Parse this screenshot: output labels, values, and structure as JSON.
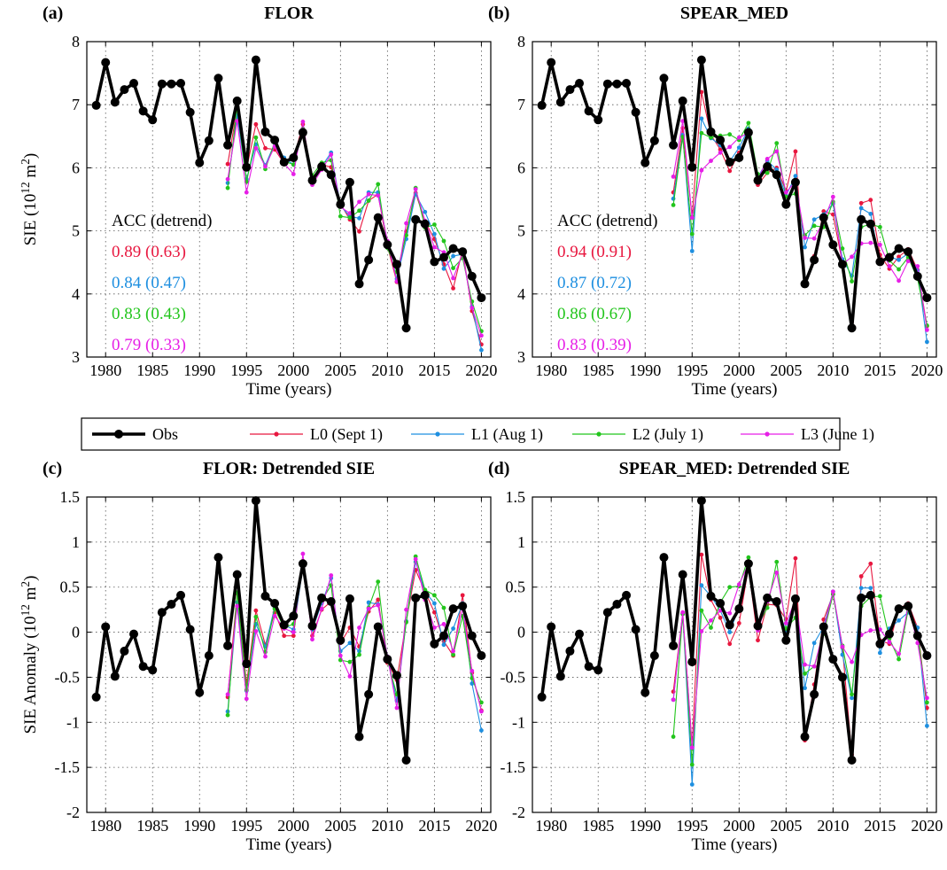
{
  "figure": {
    "legend": [
      {
        "label": "Obs",
        "color": "#000000"
      },
      {
        "label": "L0 (Sept 1)",
        "color": "#e8173f"
      },
      {
        "label": "L1 (Aug 1)",
        "color": "#1e8fe0"
      },
      {
        "label": "L2 (July 1)",
        "color": "#22c51c"
      },
      {
        "label": "L3 (June 1)",
        "color": "#e61ee6"
      }
    ]
  },
  "chart_data": [
    {
      "type": "line",
      "panel": "(a)",
      "title": "FLOR",
      "xlabel": "Time (years)",
      "ylabel": "SIE (10^12 m^2)",
      "xlim": [
        1978,
        2021
      ],
      "ylim": [
        3,
        8
      ],
      "xticks": [
        1980,
        1985,
        1990,
        1995,
        2000,
        2005,
        2010,
        2015,
        2020
      ],
      "yticks": [
        3,
        4,
        5,
        6,
        7,
        8
      ],
      "grid": true,
      "acc_header": "ACC (detrend)",
      "acc": [
        "0.89 (0.63)",
        "0.84 (0.47)",
        "0.83 (0.43)",
        "0.79 (0.33)"
      ],
      "obs": {
        "name": "Obs",
        "x_start": 1979,
        "values": [
          6.99,
          7.67,
          7.04,
          7.24,
          7.34,
          6.9,
          6.76,
          7.33,
          7.33,
          7.34,
          6.88,
          6.08,
          6.43,
          7.42,
          6.36,
          7.06,
          6.01,
          7.71,
          6.57,
          6.44,
          6.09,
          6.16,
          6.56,
          5.8,
          6.02,
          5.89,
          5.42,
          5.77,
          4.16,
          4.54,
          5.21,
          4.78,
          4.47,
          3.46,
          5.18,
          5.11,
          4.51,
          4.58,
          4.72,
          4.67,
          4.28,
          3.94
        ]
      },
      "series": [
        {
          "name": "L0 (Sept 1)",
          "x_start": 1993,
          "values": [
            6.06,
            6.94,
            5.98,
            6.69,
            6.31,
            6.29,
            6.07,
            6.14,
            6.69,
            5.82,
            6.05,
            6.01,
            5.43,
            5.18,
            4.99,
            5.48,
            5.58,
            4.76,
            4.19,
            4.99,
            5.6,
            5.15,
            4.87,
            4.47,
            4.09,
            4.7,
            3.73,
            3.2
          ]
        },
        {
          "name": "L1 (Aug 1)",
          "x_start": 1993,
          "values": [
            5.76,
            6.83,
            5.82,
            6.37,
            6.04,
            6.39,
            6.16,
            6.05,
            6.59,
            5.83,
            6.02,
            6.24,
            5.4,
            5.23,
            5.2,
            5.61,
            5.61,
            4.81,
            4.24,
            4.87,
            5.58,
            5.3,
            4.95,
            4.4,
            4.6,
            4.63,
            3.8,
            3.11
          ]
        },
        {
          "name": "L2 (July 1)",
          "x_start": 1993,
          "values": [
            5.68,
            6.96,
            5.78,
            6.48,
            5.98,
            6.4,
            6.11,
            6.05,
            6.62,
            5.88,
            6.08,
            6.12,
            5.23,
            5.21,
            5.32,
            5.48,
            5.74,
            4.73,
            4.35,
            4.93,
            5.68,
            5.05,
            5.1,
            4.84,
            4.41,
            4.57,
            3.88,
            3.41
          ]
        },
        {
          "name": "L3 (June 1)",
          "x_start": 1993,
          "values": [
            5.82,
            6.74,
            5.61,
            6.31,
            6.02,
            6.34,
            6.07,
            5.9,
            6.73,
            5.73,
            5.97,
            6.21,
            5.38,
            5.28,
            5.46,
            5.58,
            5.56,
            4.84,
            4.2,
            5.12,
            5.66,
            5.16,
            4.74,
            4.66,
            4.25,
            4.64,
            3.78,
            3.34
          ]
        }
      ]
    },
    {
      "type": "line",
      "panel": "(b)",
      "title": "SPEAR_MED",
      "xlabel": "Time (years)",
      "ylabel": "",
      "xlim": [
        1978,
        2021
      ],
      "ylim": [
        3,
        8
      ],
      "xticks": [
        1980,
        1985,
        1990,
        1995,
        2000,
        2005,
        2010,
        2015,
        2020
      ],
      "yticks": [
        3,
        4,
        5,
        6,
        7,
        8
      ],
      "grid": true,
      "acc_header": "ACC (detrend)",
      "acc": [
        "0.94 (0.91)",
        "0.87 (0.72)",
        "0.86 (0.67)",
        "0.83 (0.39)"
      ],
      "obs": {
        "name": "Obs",
        "x_start": 1979,
        "values": [
          6.99,
          7.67,
          7.04,
          7.24,
          7.34,
          6.9,
          6.76,
          7.33,
          7.33,
          7.34,
          6.88,
          6.08,
          6.43,
          7.42,
          6.36,
          7.06,
          6.01,
          7.71,
          6.57,
          6.44,
          6.09,
          6.16,
          6.56,
          5.8,
          6.02,
          5.89,
          5.42,
          5.77,
          4.16,
          4.54,
          5.21,
          4.78,
          4.47,
          3.46,
          5.18,
          5.11,
          4.51,
          4.58,
          4.72,
          4.67,
          4.28,
          3.94
        ]
      },
      "series": [
        {
          "name": "L0 (Sept 1)",
          "x_start": 1993,
          "values": [
            5.61,
            6.63,
            5.22,
            7.2,
            6.52,
            6.29,
            5.95,
            6.24,
            6.55,
            5.73,
            5.92,
            6.0,
            5.63,
            6.26,
            4.16,
            4.6,
            5.31,
            5.26,
            4.49,
            3.56,
            5.44,
            5.49,
            4.62,
            4.4,
            4.59,
            4.71,
            4.38,
            3.49
          ]
        },
        {
          "name": "L1 (Aug 1)",
          "x_start": 1993,
          "values": [
            5.51,
            6.52,
            4.68,
            6.78,
            6.47,
            6.36,
            6.1,
            6.32,
            6.62,
            5.85,
            6.11,
            5.97,
            5.56,
            5.87,
            4.74,
            5.18,
            5.26,
            5.43,
            4.55,
            4.29,
            5.36,
            5.27,
            4.48,
            4.59,
            4.54,
            4.64,
            4.37,
            3.24
          ]
        },
        {
          "name": "L2 (July 1)",
          "x_start": 1993,
          "values": [
            5.41,
            6.49,
            4.95,
            6.55,
            6.48,
            6.51,
            6.53,
            6.44,
            6.71,
            5.9,
            5.92,
            6.39,
            5.54,
            5.59,
            4.93,
            5.08,
            5.06,
            5.46,
            4.72,
            4.2,
            5.06,
            5.11,
            5.06,
            4.53,
            4.39,
            4.58,
            4.24,
            3.5
          ]
        },
        {
          "name": "L3 (June 1)",
          "x_start": 1993,
          "values": [
            5.86,
            6.74,
            5.21,
            5.96,
            6.11,
            6.24,
            6.33,
            6.48,
            6.55,
            5.81,
            6.14,
            6.26,
            5.61,
            5.78,
            4.89,
            4.88,
            5.16,
            5.54,
            4.47,
            4.59,
            4.8,
            4.81,
            4.78,
            4.44,
            4.21,
            4.52,
            4.44,
            3.43
          ]
        }
      ]
    },
    {
      "type": "line",
      "panel": "(c)",
      "title": "FLOR: Detrended SIE",
      "xlabel": "Time (years)",
      "ylabel": "SIE Anomaly (10^12 m^2)",
      "xlim": [
        1978,
        2021
      ],
      "ylim": [
        -2,
        1.5
      ],
      "xticks": [
        1980,
        1985,
        1990,
        1995,
        2000,
        2005,
        2010,
        2015,
        2020
      ],
      "yticks": [
        -2,
        -1.5,
        -1,
        -0.5,
        0,
        0.5,
        1,
        1.5
      ],
      "grid": true,
      "obs": {
        "name": "Obs",
        "x_start": 1979,
        "values": [
          -0.72,
          0.06,
          -0.49,
          -0.21,
          -0.02,
          -0.38,
          -0.42,
          0.22,
          0.31,
          0.41,
          0.03,
          -0.67,
          -0.26,
          0.83,
          -0.15,
          0.64,
          -0.35,
          1.46,
          0.4,
          0.32,
          0.08,
          0.18,
          0.76,
          0.07,
          0.38,
          0.34,
          -0.09,
          0.37,
          -1.16,
          -0.69,
          0.06,
          -0.3,
          -0.48,
          -1.42,
          0.38,
          0.41,
          -0.13,
          -0.04,
          0.26,
          0.29,
          -0.04,
          -0.26
        ]
      },
      "series": [
        {
          "name": "L0 (Sept 1)",
          "x_start": 1993,
          "values": [
            -0.72,
            0.43,
            -0.58,
            0.24,
            -0.14,
            0.22,
            -0.04,
            -0.04,
            0.79,
            -0.04,
            0.25,
            0.34,
            -0.12,
            0.05,
            -0.16,
            0.23,
            0.36,
            -0.34,
            -0.53,
            0.12,
            0.69,
            0.45,
            0.22,
            -0.1,
            -0.26,
            0.41,
            -0.45,
            -0.87
          ]
        },
        {
          "name": "L1 (Aug 1)",
          "x_start": 1993,
          "values": [
            -0.88,
            0.33,
            -0.65,
            0.09,
            -0.16,
            0.28,
            0.08,
            0.03,
            0.72,
            0.03,
            0.32,
            0.6,
            -0.21,
            -0.12,
            -0.21,
            0.33,
            0.31,
            -0.27,
            -0.76,
            0.12,
            0.78,
            0.45,
            0.32,
            -0.14,
            0.04,
            0.32,
            -0.57,
            -1.09
          ]
        },
        {
          "name": "L2 (July 1)",
          "x_start": 1993,
          "values": [
            -0.92,
            0.44,
            -0.64,
            0.17,
            -0.22,
            0.26,
            0.05,
            0.09,
            0.75,
            0.07,
            0.35,
            0.52,
            -0.31,
            -0.33,
            -0.25,
            0.27,
            0.56,
            -0.32,
            -0.69,
            0.11,
            0.84,
            0.47,
            0.41,
            0.27,
            -0.25,
            0.18,
            -0.51,
            -0.78
          ]
        },
        {
          "name": "L3 (June 1)",
          "x_start": 1993,
          "values": [
            -0.69,
            0.29,
            -0.74,
            0.01,
            -0.27,
            0.18,
            0.04,
            0.0,
            0.87,
            -0.08,
            0.26,
            0.63,
            -0.26,
            -0.49,
            0.05,
            0.26,
            0.3,
            -0.27,
            -0.84,
            0.25,
            0.81,
            0.36,
            0.05,
            0.09,
            -0.21,
            0.27,
            -0.43,
            -0.88
          ]
        }
      ]
    },
    {
      "type": "line",
      "panel": "(d)",
      "title": "SPEAR_MED: Detrended SIE",
      "xlabel": "Time (years)",
      "ylabel": "",
      "xlim": [
        1978,
        2021
      ],
      "ylim": [
        -2,
        1.5
      ],
      "xticks": [
        1980,
        1985,
        1990,
        1995,
        2000,
        2005,
        2010,
        2015,
        2020
      ],
      "yticks": [
        -2,
        -1.5,
        -1,
        -0.5,
        0,
        0.5,
        1,
        1.5
      ],
      "grid": true,
      "obs": {
        "name": "Obs",
        "x_start": 1979,
        "values": [
          -0.72,
          0.06,
          -0.49,
          -0.21,
          -0.02,
          -0.38,
          -0.42,
          0.22,
          0.31,
          0.41,
          0.03,
          -0.67,
          -0.26,
          0.83,
          -0.15,
          0.64,
          -0.33,
          1.46,
          0.4,
          0.32,
          0.08,
          0.26,
          0.76,
          0.07,
          0.38,
          0.34,
          -0.09,
          0.37,
          -1.16,
          -0.69,
          0.06,
          -0.3,
          -0.5,
          -1.42,
          0.38,
          0.41,
          -0.13,
          -0.02,
          0.26,
          0.29,
          -0.04,
          -0.26
        ]
      },
      "series": [
        {
          "name": "L0 (Sept 1)",
          "x_start": 1993,
          "values": [
            -0.66,
            0.21,
            -1.26,
            0.86,
            0.36,
            0.16,
            -0.13,
            0.1,
            0.72,
            -0.09,
            0.31,
            0.3,
            0.14,
            0.82,
            -1.2,
            -0.58,
            0.14,
            0.42,
            -0.17,
            -1.36,
            0.62,
            0.76,
            -0.09,
            -0.13,
            0.26,
            0.32,
            0.05,
            -0.84
          ]
        },
        {
          "name": "L1 (Aug 1)",
          "x_start": 1993,
          "values": [
            -0.75,
            0.21,
            -1.69,
            0.52,
            0.4,
            0.24,
            0.0,
            0.28,
            0.72,
            0.05,
            0.38,
            0.31,
            0.01,
            0.39,
            -0.62,
            -0.12,
            0.06,
            0.45,
            -0.25,
            -0.73,
            0.49,
            0.49,
            -0.23,
            0.04,
            0.13,
            0.22,
            0.05,
            -1.04
          ]
        },
        {
          "name": "L2 (July 1)",
          "x_start": 1993,
          "values": [
            -1.16,
            0.2,
            -1.47,
            0.24,
            0.05,
            0.33,
            0.5,
            0.51,
            0.83,
            0.07,
            0.27,
            0.78,
            0.04,
            0.16,
            -0.46,
            -0.38,
            -0.02,
            0.42,
            -0.15,
            -0.69,
            0.29,
            0.39,
            0.4,
            -0.07,
            -0.3,
            0.25,
            -0.02,
            -0.78
          ]
        },
        {
          "name": "L3 (June 1)",
          "x_start": 1993,
          "values": [
            -0.75,
            0.22,
            -1.28,
            0.01,
            0.13,
            0.24,
            0.21,
            0.53,
            0.76,
            0.02,
            0.34,
            0.66,
            0.1,
            0.36,
            -0.36,
            -0.38,
            0.02,
            0.45,
            -0.16,
            -0.33,
            -0.03,
            0.02,
            0.03,
            -0.11,
            -0.24,
            0.29,
            -0.12,
            -0.73
          ]
        }
      ]
    }
  ]
}
